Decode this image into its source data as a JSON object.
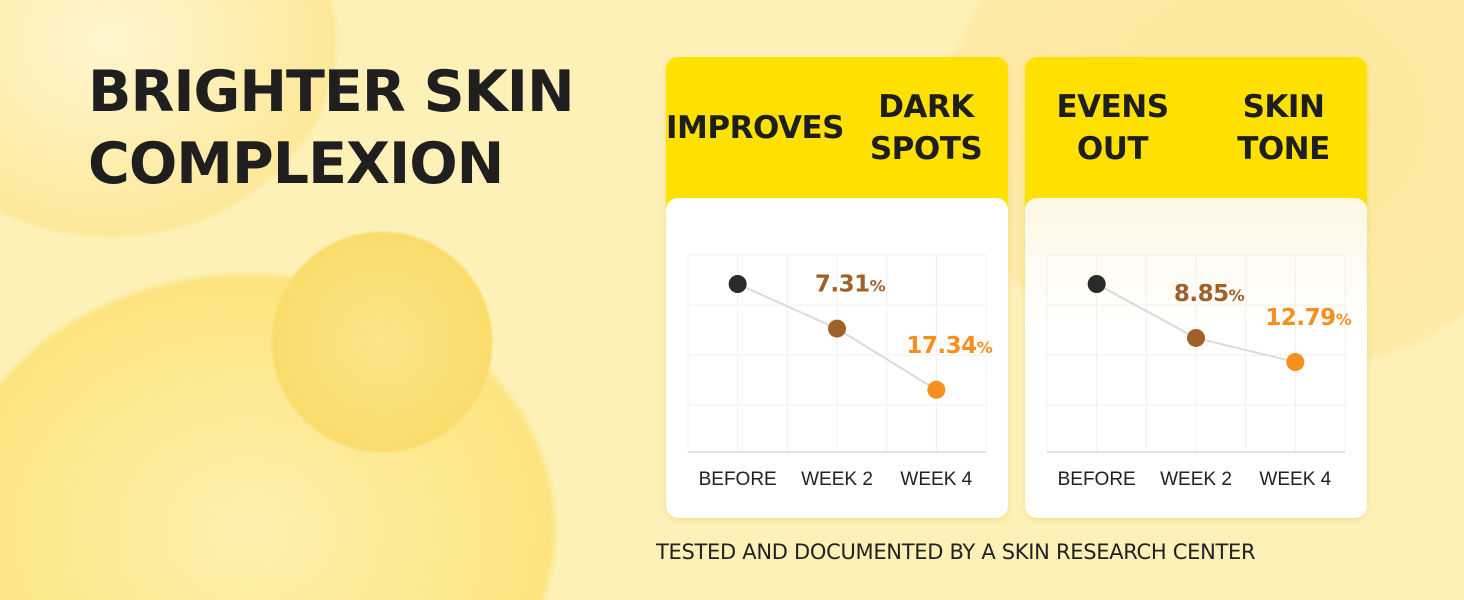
{
  "headline": [
    "BRIGHTER SKIN",
    "COMPLEXION"
  ],
  "footer": "TESTED AND DOCUMENTED BY A SKIN RESEARCH CENTER",
  "colors": {
    "before": "#2a2a2a",
    "week2": "#a0602a",
    "week4": "#f78f1e",
    "header": "#ffe100",
    "line": "#dadada"
  },
  "chart_data": [
    {
      "type": "line",
      "title": [
        "IMPROVES",
        "DARK SPOTS"
      ],
      "categories": [
        "BEFORE",
        "WEEK 2",
        "WEEK 4"
      ],
      "values": [
        0,
        7.31,
        17.34
      ],
      "data_labels": [
        "",
        "7.31%",
        "17.34%"
      ],
      "grid": true,
      "y_inverted": true
    },
    {
      "type": "line",
      "title": [
        "EVENS OUT",
        "SKIN TONE"
      ],
      "categories": [
        "BEFORE",
        "WEEK 2",
        "WEEK 4"
      ],
      "values": [
        0,
        8.85,
        12.79
      ],
      "data_labels": [
        "",
        "8.85%",
        "12.79%"
      ],
      "grid": true,
      "y_inverted": true
    }
  ]
}
